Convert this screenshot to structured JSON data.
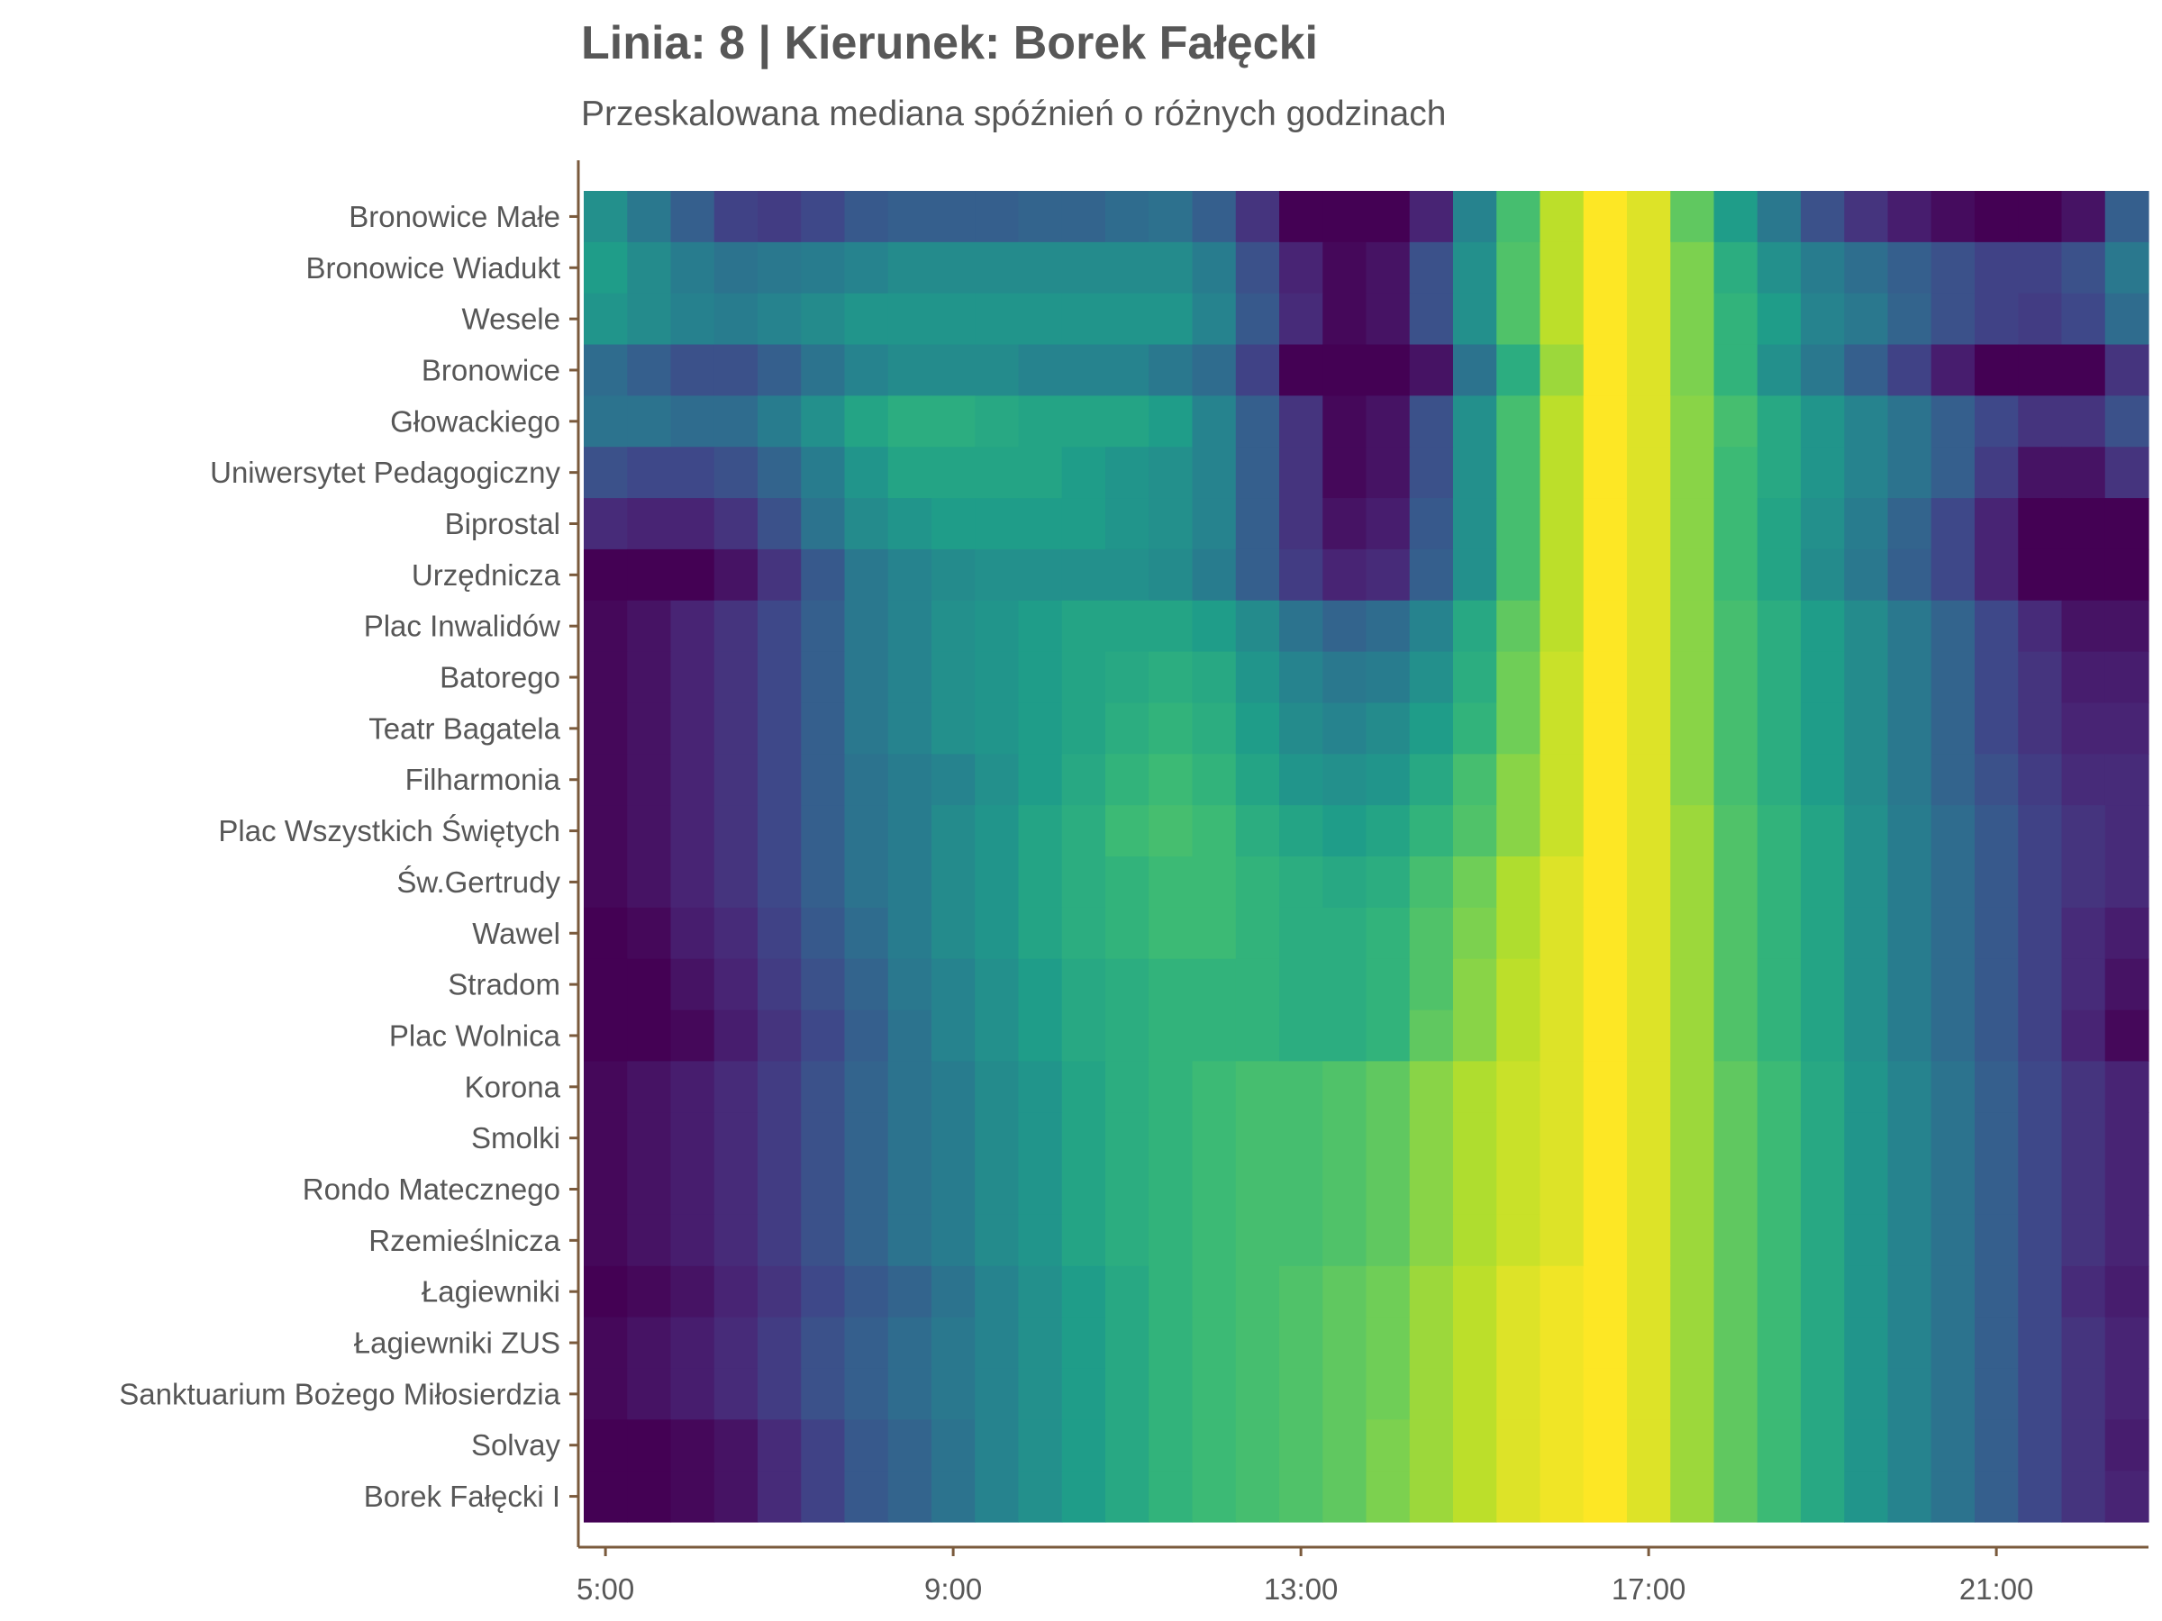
{
  "chart_data": {
    "type": "heatmap",
    "title": "Linia: 8 | Kierunek: Borek Fałęcki",
    "subtitle": "Przeskalowana mediana spóźnień o różnych godzinach",
    "xlabel": "",
    "ylabel": "",
    "x_ticks": [
      "5:00",
      "9:00",
      "13:00",
      "17:00",
      "21:00"
    ],
    "hours": [
      5,
      5.5,
      6,
      6.5,
      7,
      7.5,
      8,
      8.5,
      9,
      9.5,
      10,
      10.5,
      11,
      11.5,
      12,
      12.5,
      13,
      13.5,
      14,
      14.5,
      15,
      15.5,
      16,
      16.5,
      17,
      17.5,
      18,
      18.5,
      19,
      19.5,
      20,
      20.5,
      21,
      21.5,
      22,
      22.5
    ],
    "xlim": [
      4.75,
      22.75
    ],
    "colorscale": "viridis",
    "value_range": [
      0,
      1
    ],
    "grid": false,
    "legend": "none",
    "stops": [
      "Bronowice Małe",
      "Bronowice Wiadukt",
      "Wesele",
      "Bronowice",
      "Głowackiego",
      "Uniwersytet Pedagogiczny",
      "Biprostal",
      "Urzędnicza",
      "Plac Inwalidów",
      "Batorego",
      "Teatr Bagatela",
      "Filharmonia",
      "Plac Wszystkich Świętych",
      "Św.Gertrudy",
      "Wawel",
      "Stradom",
      "Plac Wolnica",
      "Korona",
      "Smolki",
      "Rondo Matecznego",
      "Rzemieślnicza",
      "Łagiewniki",
      "Łagiewniki ZUS",
      "Sanktuarium Bożego Miłosierdzia",
      "Solvay",
      "Borek Fałęcki I"
    ],
    "values": [
      [
        0.5,
        0.4,
        0.3,
        0.2,
        0.18,
        0.22,
        0.28,
        0.3,
        0.3,
        0.3,
        0.32,
        0.32,
        0.35,
        0.37,
        0.3,
        0.15,
        0.0,
        0.0,
        0.0,
        0.1,
        0.45,
        0.7,
        0.9,
        1.0,
        0.95,
        0.75,
        0.55,
        0.4,
        0.25,
        0.15,
        0.08,
        0.03,
        0.0,
        0.0,
        0.05,
        0.3
      ],
      [
        0.55,
        0.48,
        0.42,
        0.38,
        0.4,
        0.42,
        0.45,
        0.48,
        0.48,
        0.48,
        0.48,
        0.48,
        0.48,
        0.48,
        0.42,
        0.25,
        0.1,
        0.02,
        0.05,
        0.25,
        0.5,
        0.72,
        0.9,
        1.0,
        0.95,
        0.8,
        0.62,
        0.5,
        0.42,
        0.36,
        0.3,
        0.25,
        0.2,
        0.2,
        0.25,
        0.4
      ],
      [
        0.52,
        0.48,
        0.44,
        0.42,
        0.45,
        0.48,
        0.52,
        0.52,
        0.52,
        0.52,
        0.52,
        0.52,
        0.52,
        0.52,
        0.45,
        0.28,
        0.12,
        0.02,
        0.05,
        0.25,
        0.5,
        0.72,
        0.9,
        1.0,
        0.95,
        0.8,
        0.65,
        0.55,
        0.45,
        0.4,
        0.32,
        0.25,
        0.2,
        0.18,
        0.22,
        0.35
      ],
      [
        0.35,
        0.3,
        0.25,
        0.25,
        0.3,
        0.38,
        0.45,
        0.48,
        0.48,
        0.48,
        0.45,
        0.45,
        0.45,
        0.4,
        0.35,
        0.2,
        0.0,
        0.0,
        0.0,
        0.05,
        0.38,
        0.62,
        0.85,
        1.0,
        0.95,
        0.8,
        0.65,
        0.5,
        0.4,
        0.3,
        0.2,
        0.08,
        0.0,
        0.0,
        0.0,
        0.15
      ],
      [
        0.38,
        0.38,
        0.35,
        0.35,
        0.42,
        0.5,
        0.58,
        0.62,
        0.62,
        0.6,
        0.58,
        0.58,
        0.58,
        0.55,
        0.45,
        0.3,
        0.15,
        0.02,
        0.05,
        0.25,
        0.5,
        0.7,
        0.9,
        1.0,
        0.95,
        0.82,
        0.7,
        0.6,
        0.52,
        0.45,
        0.38,
        0.3,
        0.22,
        0.15,
        0.15,
        0.25
      ],
      [
        0.25,
        0.22,
        0.22,
        0.25,
        0.32,
        0.42,
        0.52,
        0.58,
        0.58,
        0.58,
        0.58,
        0.55,
        0.52,
        0.5,
        0.45,
        0.3,
        0.15,
        0.02,
        0.05,
        0.25,
        0.5,
        0.7,
        0.9,
        1.0,
        0.95,
        0.82,
        0.68,
        0.6,
        0.52,
        0.45,
        0.38,
        0.3,
        0.18,
        0.05,
        0.05,
        0.15
      ],
      [
        0.12,
        0.1,
        0.1,
        0.15,
        0.25,
        0.38,
        0.48,
        0.52,
        0.55,
        0.55,
        0.55,
        0.55,
        0.52,
        0.5,
        0.45,
        0.3,
        0.15,
        0.05,
        0.08,
        0.28,
        0.5,
        0.7,
        0.9,
        1.0,
        0.95,
        0.82,
        0.68,
        0.58,
        0.5,
        0.42,
        0.32,
        0.22,
        0.1,
        0.0,
        0.0,
        0.0
      ],
      [
        0.0,
        0.0,
        0.0,
        0.05,
        0.15,
        0.28,
        0.4,
        0.45,
        0.48,
        0.5,
        0.5,
        0.5,
        0.5,
        0.48,
        0.42,
        0.3,
        0.18,
        0.1,
        0.12,
        0.3,
        0.5,
        0.7,
        0.9,
        1.0,
        0.95,
        0.82,
        0.68,
        0.58,
        0.48,
        0.4,
        0.3,
        0.22,
        0.1,
        0.0,
        0.0,
        0.0
      ],
      [
        0.02,
        0.05,
        0.1,
        0.15,
        0.22,
        0.3,
        0.4,
        0.45,
        0.5,
        0.52,
        0.55,
        0.58,
        0.58,
        0.58,
        0.55,
        0.48,
        0.38,
        0.32,
        0.35,
        0.45,
        0.6,
        0.75,
        0.9,
        1.0,
        0.95,
        0.82,
        0.7,
        0.62,
        0.55,
        0.48,
        0.4,
        0.32,
        0.22,
        0.12,
        0.05,
        0.05
      ],
      [
        0.02,
        0.05,
        0.1,
        0.15,
        0.22,
        0.3,
        0.4,
        0.45,
        0.5,
        0.52,
        0.55,
        0.58,
        0.6,
        0.62,
        0.6,
        0.52,
        0.45,
        0.4,
        0.42,
        0.5,
        0.62,
        0.78,
        0.92,
        1.0,
        0.95,
        0.82,
        0.7,
        0.62,
        0.55,
        0.48,
        0.4,
        0.32,
        0.22,
        0.15,
        0.08,
        0.08
      ],
      [
        0.02,
        0.05,
        0.1,
        0.15,
        0.22,
        0.3,
        0.4,
        0.45,
        0.5,
        0.52,
        0.55,
        0.58,
        0.62,
        0.65,
        0.62,
        0.55,
        0.48,
        0.45,
        0.48,
        0.55,
        0.65,
        0.78,
        0.92,
        1.0,
        0.95,
        0.82,
        0.7,
        0.62,
        0.55,
        0.48,
        0.4,
        0.32,
        0.22,
        0.15,
        0.1,
        0.1
      ],
      [
        0.02,
        0.05,
        0.1,
        0.15,
        0.22,
        0.3,
        0.38,
        0.42,
        0.45,
        0.5,
        0.55,
        0.6,
        0.65,
        0.68,
        0.65,
        0.58,
        0.52,
        0.5,
        0.52,
        0.6,
        0.7,
        0.82,
        0.92,
        1.0,
        0.95,
        0.82,
        0.7,
        0.62,
        0.55,
        0.48,
        0.4,
        0.32,
        0.25,
        0.18,
        0.12,
        0.12
      ],
      [
        0.02,
        0.05,
        0.1,
        0.15,
        0.22,
        0.3,
        0.38,
        0.42,
        0.48,
        0.52,
        0.58,
        0.62,
        0.68,
        0.7,
        0.68,
        0.62,
        0.58,
        0.55,
        0.58,
        0.65,
        0.72,
        0.82,
        0.92,
        1.0,
        0.95,
        0.85,
        0.72,
        0.65,
        0.58,
        0.5,
        0.42,
        0.35,
        0.28,
        0.2,
        0.15,
        0.12
      ],
      [
        0.02,
        0.05,
        0.1,
        0.15,
        0.22,
        0.3,
        0.38,
        0.42,
        0.48,
        0.52,
        0.58,
        0.62,
        0.65,
        0.68,
        0.68,
        0.65,
        0.62,
        0.6,
        0.62,
        0.7,
        0.78,
        0.88,
        0.95,
        1.0,
        0.95,
        0.85,
        0.72,
        0.65,
        0.58,
        0.5,
        0.42,
        0.35,
        0.28,
        0.2,
        0.15,
        0.12
      ],
      [
        0.0,
        0.02,
        0.08,
        0.12,
        0.2,
        0.28,
        0.35,
        0.42,
        0.48,
        0.52,
        0.58,
        0.62,
        0.65,
        0.68,
        0.68,
        0.65,
        0.62,
        0.62,
        0.65,
        0.72,
        0.8,
        0.88,
        0.95,
        1.0,
        0.95,
        0.85,
        0.72,
        0.65,
        0.58,
        0.5,
        0.42,
        0.35,
        0.28,
        0.2,
        0.12,
        0.08
      ],
      [
        0.0,
        0.0,
        0.05,
        0.1,
        0.18,
        0.25,
        0.32,
        0.4,
        0.45,
        0.5,
        0.55,
        0.6,
        0.62,
        0.65,
        0.65,
        0.65,
        0.62,
        0.62,
        0.65,
        0.72,
        0.82,
        0.9,
        0.95,
        1.0,
        0.95,
        0.85,
        0.72,
        0.65,
        0.58,
        0.5,
        0.42,
        0.35,
        0.28,
        0.2,
        0.12,
        0.05
      ],
      [
        0.0,
        0.0,
        0.02,
        0.08,
        0.15,
        0.22,
        0.3,
        0.38,
        0.45,
        0.5,
        0.55,
        0.6,
        0.62,
        0.65,
        0.65,
        0.65,
        0.62,
        0.62,
        0.65,
        0.75,
        0.82,
        0.9,
        0.95,
        1.0,
        0.95,
        0.85,
        0.72,
        0.65,
        0.58,
        0.5,
        0.42,
        0.35,
        0.28,
        0.2,
        0.1,
        0.02
      ],
      [
        0.02,
        0.05,
        0.08,
        0.12,
        0.18,
        0.25,
        0.32,
        0.38,
        0.42,
        0.48,
        0.52,
        0.58,
        0.62,
        0.65,
        0.68,
        0.7,
        0.7,
        0.72,
        0.75,
        0.82,
        0.88,
        0.92,
        0.95,
        1.0,
        0.95,
        0.85,
        0.75,
        0.68,
        0.6,
        0.52,
        0.45,
        0.38,
        0.3,
        0.22,
        0.15,
        0.1
      ],
      [
        0.02,
        0.05,
        0.08,
        0.12,
        0.18,
        0.25,
        0.32,
        0.38,
        0.42,
        0.48,
        0.52,
        0.58,
        0.62,
        0.65,
        0.68,
        0.7,
        0.7,
        0.72,
        0.75,
        0.82,
        0.88,
        0.92,
        0.95,
        1.0,
        0.95,
        0.85,
        0.75,
        0.68,
        0.6,
        0.52,
        0.45,
        0.38,
        0.3,
        0.22,
        0.15,
        0.1
      ],
      [
        0.02,
        0.05,
        0.08,
        0.12,
        0.18,
        0.25,
        0.32,
        0.38,
        0.42,
        0.48,
        0.52,
        0.58,
        0.62,
        0.65,
        0.68,
        0.7,
        0.7,
        0.72,
        0.75,
        0.82,
        0.88,
        0.92,
        0.95,
        1.0,
        0.95,
        0.85,
        0.75,
        0.68,
        0.6,
        0.52,
        0.45,
        0.38,
        0.3,
        0.22,
        0.15,
        0.1
      ],
      [
        0.02,
        0.05,
        0.08,
        0.12,
        0.18,
        0.25,
        0.32,
        0.38,
        0.42,
        0.48,
        0.52,
        0.58,
        0.62,
        0.65,
        0.68,
        0.7,
        0.7,
        0.72,
        0.75,
        0.82,
        0.88,
        0.92,
        0.95,
        1.0,
        0.95,
        0.85,
        0.75,
        0.68,
        0.6,
        0.52,
        0.45,
        0.38,
        0.3,
        0.22,
        0.15,
        0.1
      ],
      [
        0.0,
        0.02,
        0.05,
        0.1,
        0.15,
        0.22,
        0.28,
        0.32,
        0.38,
        0.45,
        0.5,
        0.55,
        0.6,
        0.65,
        0.68,
        0.7,
        0.72,
        0.75,
        0.78,
        0.85,
        0.9,
        0.95,
        0.98,
        1.0,
        0.95,
        0.85,
        0.75,
        0.68,
        0.6,
        0.52,
        0.45,
        0.38,
        0.3,
        0.22,
        0.12,
        0.08
      ],
      [
        0.02,
        0.05,
        0.08,
        0.12,
        0.18,
        0.25,
        0.3,
        0.35,
        0.4,
        0.45,
        0.5,
        0.55,
        0.6,
        0.65,
        0.68,
        0.7,
        0.72,
        0.75,
        0.78,
        0.85,
        0.9,
        0.95,
        0.98,
        1.0,
        0.95,
        0.85,
        0.75,
        0.68,
        0.6,
        0.52,
        0.45,
        0.38,
        0.3,
        0.22,
        0.15,
        0.1
      ],
      [
        0.02,
        0.05,
        0.08,
        0.12,
        0.18,
        0.25,
        0.3,
        0.35,
        0.4,
        0.45,
        0.5,
        0.55,
        0.6,
        0.65,
        0.68,
        0.7,
        0.72,
        0.75,
        0.78,
        0.85,
        0.9,
        0.95,
        0.98,
        1.0,
        0.95,
        0.85,
        0.75,
        0.68,
        0.6,
        0.52,
        0.45,
        0.38,
        0.3,
        0.22,
        0.15,
        0.1
      ],
      [
        0.0,
        0.0,
        0.02,
        0.05,
        0.12,
        0.2,
        0.28,
        0.32,
        0.38,
        0.45,
        0.5,
        0.55,
        0.6,
        0.65,
        0.68,
        0.7,
        0.72,
        0.75,
        0.8,
        0.85,
        0.9,
        0.95,
        0.98,
        1.0,
        0.95,
        0.85,
        0.75,
        0.68,
        0.6,
        0.52,
        0.45,
        0.38,
        0.3,
        0.22,
        0.15,
        0.08
      ],
      [
        0.0,
        0.0,
        0.02,
        0.05,
        0.12,
        0.2,
        0.28,
        0.32,
        0.38,
        0.45,
        0.5,
        0.55,
        0.6,
        0.65,
        0.68,
        0.7,
        0.72,
        0.75,
        0.8,
        0.85,
        0.9,
        0.95,
        0.98,
        1.0,
        0.95,
        0.85,
        0.75,
        0.68,
        0.6,
        0.52,
        0.45,
        0.38,
        0.3,
        0.22,
        0.15,
        0.1
      ]
    ]
  }
}
